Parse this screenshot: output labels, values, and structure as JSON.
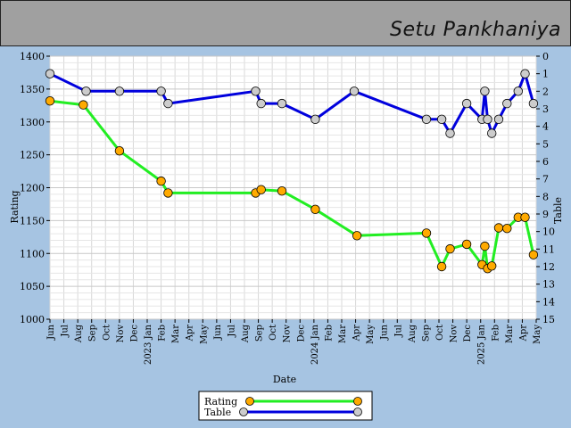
{
  "header": {
    "title": "Setu Pankhaniya"
  },
  "chart_data": {
    "type": "line",
    "title": "Setu Pankhaniya",
    "xlabel": "Date",
    "ylabel": "Rating",
    "y2label": "Table",
    "ylim": [
      1000,
      1400
    ],
    "y2lim": [
      0,
      15
    ],
    "y2_inverted": true,
    "grid": true,
    "legend_position": "bottom-center",
    "y_ticks": [
      "1000",
      "1050",
      "1100",
      "1150",
      "1200",
      "1250",
      "1300",
      "1350",
      "1400"
    ],
    "y2_ticks": [
      "0",
      "1",
      "2",
      "3",
      "4",
      "5",
      "6",
      "7",
      "8",
      "9",
      "10",
      "11",
      "12",
      "13",
      "14",
      "15"
    ],
    "x_ticks": [
      "Jun",
      "Jul",
      "Aug",
      "Sep",
      "Oct",
      "Nov",
      "Dec",
      "2023 Jan",
      "Feb",
      "Mar",
      "Apr",
      "May",
      "Jun",
      "Jul",
      "Aug",
      "Sep",
      "Oct",
      "Nov",
      "Dec",
      "2024 Jan",
      "Feb",
      "Mar",
      "Apr",
      "May",
      "Jun",
      "Jul",
      "Aug",
      "Sep",
      "Oct",
      "Nov",
      "Dec",
      "2025 Jan",
      "Feb",
      "Mar",
      "Apr",
      "May"
    ],
    "series": [
      {
        "name": "Rating",
        "axis": "left",
        "color": "#22ee22",
        "marker_color": "#ffaa00",
        "x": [
          0,
          2.4,
          5,
          8,
          8.5,
          14.8,
          15.2,
          16.7,
          19.1,
          22.1,
          27.1,
          28.2,
          28.8,
          30,
          31.1,
          31.3,
          31.5,
          31.8,
          32.3,
          32.9,
          33.7,
          34.2,
          34.8
        ],
        "values": [
          1332,
          1326,
          1256,
          1210,
          1192,
          1192,
          1197,
          1195,
          1167,
          1127,
          1131,
          1080,
          1107,
          1114,
          1083,
          1111,
          1077,
          1081,
          1139,
          1138,
          1155,
          1155,
          1098
        ]
      },
      {
        "name": "Table",
        "axis": "right",
        "color": "#0000dd",
        "marker_color": "#cccccc",
        "x": [
          0,
          2.6,
          5,
          8,
          8.5,
          14.8,
          15.2,
          16.7,
          19.1,
          21.9,
          27.1,
          28.2,
          28.8,
          30,
          31.1,
          31.3,
          31.5,
          31.8,
          32.3,
          32.9,
          33.7,
          34.2,
          34.8
        ],
        "values": [
          1,
          2,
          2,
          2,
          2.7,
          2,
          2.7,
          2.7,
          3.6,
          2,
          3.6,
          3.6,
          4.4,
          2.7,
          3.6,
          2,
          3.6,
          4.4,
          3.6,
          2.7,
          2,
          1,
          2.7
        ]
      }
    ]
  }
}
